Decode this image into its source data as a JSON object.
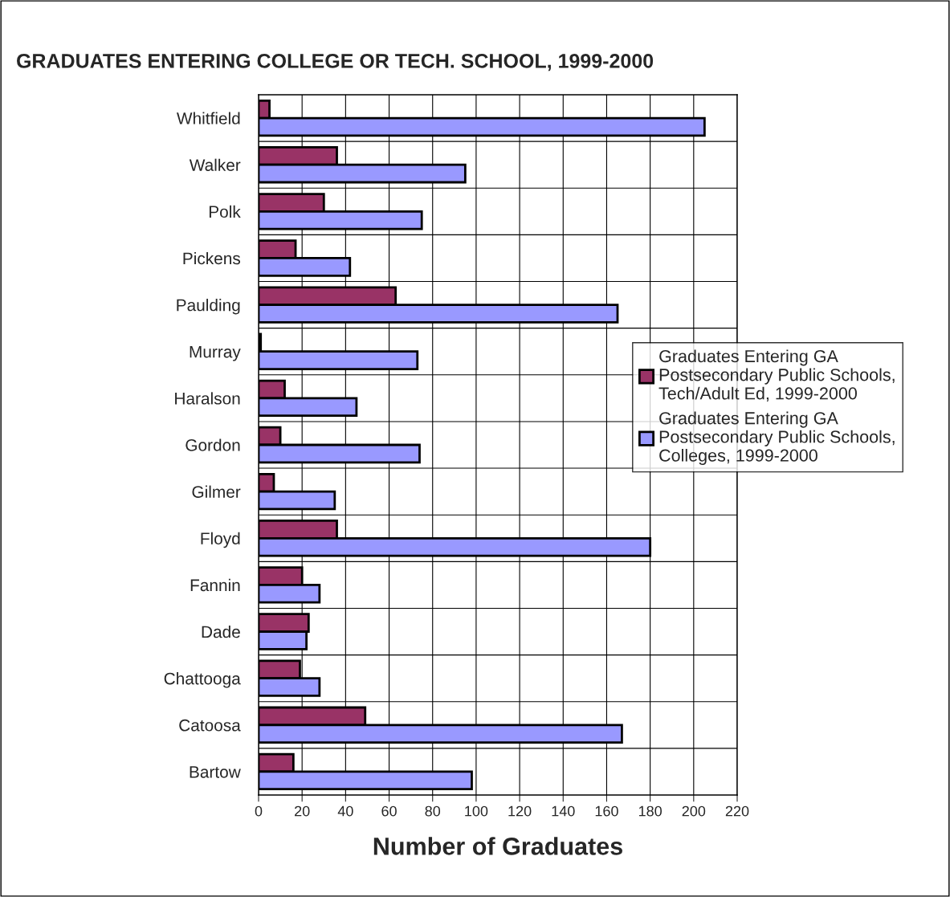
{
  "chart_data": {
    "type": "bar",
    "orientation": "horizontal",
    "title": "GRADUATES ENTERING COLLEGE OR TECH. SCHOOL, 1999-2000",
    "xlabel": "Number of Graduates",
    "categories": [
      "Whitfield",
      "Walker",
      "Polk",
      "Pickens",
      "Paulding",
      "Murray",
      "Haralson",
      "Gordon",
      "Gilmer",
      "Floyd",
      "Fannin",
      "Dade",
      "Chattooga",
      "Catoosa",
      "Bartow"
    ],
    "series": [
      {
        "name": "Graduates Entering GA Postsecondary Public Schools, Tech/Adult Ed, 1999-2000",
        "color": "#993366",
        "values": [
          5,
          36,
          30,
          17,
          63,
          1,
          12,
          10,
          7,
          36,
          20,
          23,
          19,
          49,
          16
        ]
      },
      {
        "name": "Graduates Entering GA Postsecondary Public Schools, Colleges, 1999-2000",
        "color": "#9999ff",
        "values": [
          205,
          95,
          75,
          42,
          165,
          73,
          45,
          74,
          35,
          180,
          28,
          22,
          28,
          167,
          98
        ]
      }
    ],
    "xlim": [
      0,
      220
    ],
    "xticks": [
      0,
      20,
      40,
      60,
      80,
      100,
      120,
      140,
      160,
      180,
      200,
      220
    ],
    "grid": true,
    "legend": "right"
  }
}
